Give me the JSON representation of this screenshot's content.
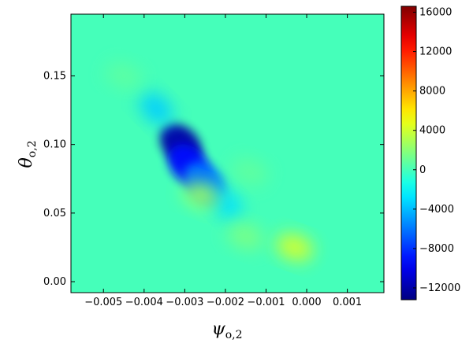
{
  "chart_data": {
    "type": "heatmap",
    "title": "",
    "xlabel": {
      "main": "ψ",
      "sub": "o,2"
    },
    "ylabel": {
      "main": "θ",
      "sub": "o,2"
    },
    "xlim": [
      -0.0058,
      0.0019
    ],
    "ylim": [
      -0.008,
      0.195
    ],
    "xticks": [
      -0.005,
      -0.004,
      -0.003,
      -0.002,
      -0.001,
      0.0,
      0.001
    ],
    "xtick_labels": [
      "−0.005",
      "−0.004",
      "−0.003",
      "−0.002",
      "−0.001",
      "0.000",
      "0.001"
    ],
    "yticks": [
      0.0,
      0.05,
      0.1,
      0.15
    ],
    "ytick_labels": [
      "0.00",
      "0.05",
      "0.10",
      "0.15"
    ],
    "colorbar": {
      "colormap": "jet",
      "range": [
        -13200,
        16600
      ],
      "ticks": [
        -12000,
        -8000,
        -4000,
        0,
        4000,
        8000,
        12000,
        16000
      ],
      "tick_labels": [
        "−12000",
        "−8000",
        "−4000",
        "0",
        "4000",
        "8000",
        "12000",
        "16000"
      ]
    },
    "background_value": 0,
    "features": [
      {
        "kind": "trough",
        "x": -0.0031,
        "y": 0.1,
        "value": -12000
      },
      {
        "kind": "trough",
        "x": -0.0029,
        "y": 0.085,
        "value": -9000
      },
      {
        "kind": "trough",
        "x": -0.0025,
        "y": 0.072,
        "value": -6000
      },
      {
        "kind": "trough",
        "x": -0.0037,
        "y": 0.126,
        "value": -3500
      },
      {
        "kind": "trough",
        "x": -0.002,
        "y": 0.057,
        "value": -3000
      },
      {
        "kind": "peak",
        "x": -0.0003,
        "y": 0.025,
        "value": 4200
      },
      {
        "kind": "peak",
        "x": -0.0026,
        "y": 0.063,
        "value": 2500
      },
      {
        "kind": "peak",
        "x": -0.0015,
        "y": 0.033,
        "value": 1500
      },
      {
        "kind": "peak",
        "x": -0.0045,
        "y": 0.15,
        "value": 700
      },
      {
        "kind": "peak",
        "x": -0.0014,
        "y": 0.08,
        "value": 800
      }
    ]
  }
}
